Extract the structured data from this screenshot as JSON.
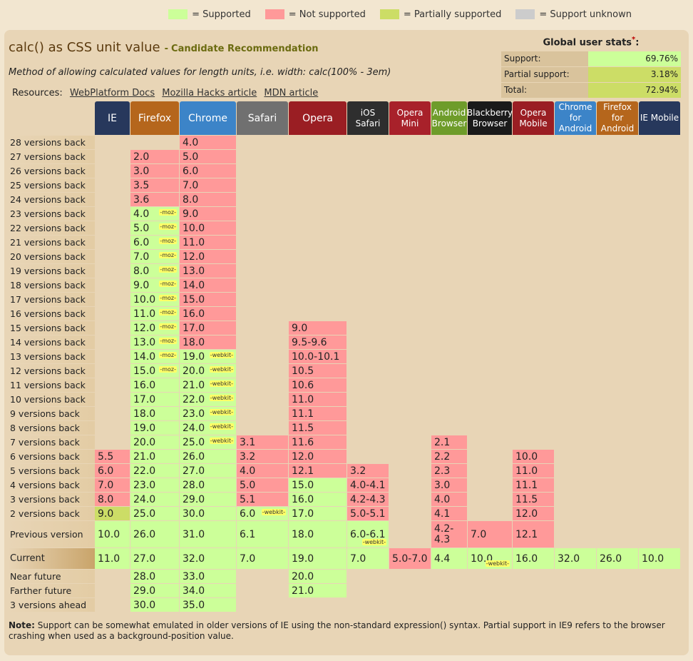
{
  "legend": [
    {
      "label": "= Supported",
      "color": "#ccff99"
    },
    {
      "label": "= Not supported",
      "color": "#ff9999"
    },
    {
      "label": "= Partially supported",
      "color": "#ccdd66"
    },
    {
      "label": "= Support unknown",
      "color": "#cccccc"
    }
  ],
  "feature": {
    "title": "calc() as CSS unit value",
    "status_dash": "-",
    "status": "Candidate Recommendation",
    "description": "Method of allowing calculated values for length units, i.e. width: calc(100% - 3em)",
    "resources_label": "Resources:",
    "resources": [
      "WebPlatform Docs",
      "Mozilla Hacks article",
      "MDN article"
    ]
  },
  "stats": {
    "title": "Global user stats",
    "asterisk": "*",
    "colon": ":",
    "rows": [
      {
        "label": "Support:",
        "value": "69.76%",
        "color": "#ccff99"
      },
      {
        "label": "Partial support:",
        "value": "3.18%",
        "color": "#ccdd66"
      },
      {
        "label": "Total:",
        "value": "72.94%",
        "color": "#ccdd66"
      }
    ]
  },
  "browsers": [
    {
      "name": "IE",
      "color": "#27385c"
    },
    {
      "name": "Firefox",
      "color": "#b5661c"
    },
    {
      "name": "Chrome",
      "color": "#3c84c8"
    },
    {
      "name": "Safari",
      "color": "#707070"
    },
    {
      "name": "Opera",
      "color": "#9a1e23"
    },
    {
      "name": "iOS Safari",
      "color": "#2e2e2e"
    },
    {
      "name": "Opera Mini",
      "color": "#a8212a"
    },
    {
      "name": "Android Browser",
      "color": "#6e9c2a"
    },
    {
      "name": "Blackberry Browser",
      "color": "#1a1a1a"
    },
    {
      "name": "Opera Mobile",
      "color": "#9a1e23"
    },
    {
      "name": "Chrome for Android",
      "color": "#3c84c8"
    },
    {
      "name": "Firefox for Android",
      "color": "#b5661c"
    },
    {
      "name": "IE Mobile",
      "color": "#27385c"
    }
  ],
  "rows": [
    "28 versions back",
    "27 versions back",
    "26 versions back",
    "25 versions back",
    "24 versions back",
    "23 versions back",
    "22 versions back",
    "21 versions back",
    "20 versions back",
    "19 versions back",
    "18 versions back",
    "17 versions back",
    "16 versions back",
    "15 versions back",
    "14 versions back",
    "13 versions back",
    "12 versions back",
    "11 versions back",
    "10 versions back",
    "9 versions back",
    "8 versions back",
    "7 versions back",
    "6 versions back",
    "5 versions back",
    "4 versions back",
    "3 versions back",
    "2 versions back",
    "Previous version",
    "Current",
    "Near future",
    "Farther future",
    "3 versions ahead"
  ],
  "cells": [
    {
      "r": 0,
      "c": 2,
      "v": "4.0",
      "s": "n"
    },
    {
      "r": 1,
      "c": 1,
      "v": "2.0",
      "s": "n"
    },
    {
      "r": 1,
      "c": 2,
      "v": "5.0",
      "s": "n"
    },
    {
      "r": 2,
      "c": 1,
      "v": "3.0",
      "s": "n"
    },
    {
      "r": 2,
      "c": 2,
      "v": "6.0",
      "s": "n"
    },
    {
      "r": 3,
      "c": 1,
      "v": "3.5",
      "s": "n"
    },
    {
      "r": 3,
      "c": 2,
      "v": "7.0",
      "s": "n"
    },
    {
      "r": 4,
      "c": 1,
      "v": "3.6",
      "s": "n"
    },
    {
      "r": 4,
      "c": 2,
      "v": "8.0",
      "s": "n"
    },
    {
      "r": 5,
      "c": 1,
      "v": "4.0",
      "s": "y",
      "px": "-moz-"
    },
    {
      "r": 5,
      "c": 2,
      "v": "9.0",
      "s": "n"
    },
    {
      "r": 6,
      "c": 1,
      "v": "5.0",
      "s": "y",
      "px": "-moz-"
    },
    {
      "r": 6,
      "c": 2,
      "v": "10.0",
      "s": "n"
    },
    {
      "r": 7,
      "c": 1,
      "v": "6.0",
      "s": "y",
      "px": "-moz-"
    },
    {
      "r": 7,
      "c": 2,
      "v": "11.0",
      "s": "n"
    },
    {
      "r": 8,
      "c": 1,
      "v": "7.0",
      "s": "y",
      "px": "-moz-"
    },
    {
      "r": 8,
      "c": 2,
      "v": "12.0",
      "s": "n"
    },
    {
      "r": 9,
      "c": 1,
      "v": "8.0",
      "s": "y",
      "px": "-moz-"
    },
    {
      "r": 9,
      "c": 2,
      "v": "13.0",
      "s": "n"
    },
    {
      "r": 10,
      "c": 1,
      "v": "9.0",
      "s": "y",
      "px": "-moz-"
    },
    {
      "r": 10,
      "c": 2,
      "v": "14.0",
      "s": "n"
    },
    {
      "r": 11,
      "c": 1,
      "v": "10.0",
      "s": "y",
      "px": "-moz-"
    },
    {
      "r": 11,
      "c": 2,
      "v": "15.0",
      "s": "n"
    },
    {
      "r": 12,
      "c": 1,
      "v": "11.0",
      "s": "y",
      "px": "-moz-"
    },
    {
      "r": 12,
      "c": 2,
      "v": "16.0",
      "s": "n"
    },
    {
      "r": 13,
      "c": 1,
      "v": "12.0",
      "s": "y",
      "px": "-moz-"
    },
    {
      "r": 13,
      "c": 2,
      "v": "17.0",
      "s": "n"
    },
    {
      "r": 13,
      "c": 4,
      "v": "9.0",
      "s": "n"
    },
    {
      "r": 14,
      "c": 1,
      "v": "13.0",
      "s": "y",
      "px": "-moz-"
    },
    {
      "r": 14,
      "c": 2,
      "v": "18.0",
      "s": "n"
    },
    {
      "r": 14,
      "c": 4,
      "v": "9.5-9.6",
      "s": "n"
    },
    {
      "r": 15,
      "c": 1,
      "v": "14.0",
      "s": "y",
      "px": "-moz-"
    },
    {
      "r": 15,
      "c": 2,
      "v": "19.0",
      "s": "y",
      "px": "-webkit-"
    },
    {
      "r": 15,
      "c": 4,
      "v": "10.0-10.1",
      "s": "n"
    },
    {
      "r": 16,
      "c": 1,
      "v": "15.0",
      "s": "y",
      "px": "-moz-"
    },
    {
      "r": 16,
      "c": 2,
      "v": "20.0",
      "s": "y",
      "px": "-webkit-"
    },
    {
      "r": 16,
      "c": 4,
      "v": "10.5",
      "s": "n"
    },
    {
      "r": 17,
      "c": 1,
      "v": "16.0",
      "s": "y"
    },
    {
      "r": 17,
      "c": 2,
      "v": "21.0",
      "s": "y",
      "px": "-webkit-"
    },
    {
      "r": 17,
      "c": 4,
      "v": "10.6",
      "s": "n"
    },
    {
      "r": 18,
      "c": 1,
      "v": "17.0",
      "s": "y"
    },
    {
      "r": 18,
      "c": 2,
      "v": "22.0",
      "s": "y",
      "px": "-webkit-"
    },
    {
      "r": 18,
      "c": 4,
      "v": "11.0",
      "s": "n"
    },
    {
      "r": 19,
      "c": 1,
      "v": "18.0",
      "s": "y"
    },
    {
      "r": 19,
      "c": 2,
      "v": "23.0",
      "s": "y",
      "px": "-webkit-"
    },
    {
      "r": 19,
      "c": 4,
      "v": "11.1",
      "s": "n"
    },
    {
      "r": 20,
      "c": 1,
      "v": "19.0",
      "s": "y"
    },
    {
      "r": 20,
      "c": 2,
      "v": "24.0",
      "s": "y",
      "px": "-webkit-"
    },
    {
      "r": 20,
      "c": 4,
      "v": "11.5",
      "s": "n"
    },
    {
      "r": 21,
      "c": 1,
      "v": "20.0",
      "s": "y"
    },
    {
      "r": 21,
      "c": 2,
      "v": "25.0",
      "s": "y",
      "px": "-webkit-"
    },
    {
      "r": 21,
      "c": 3,
      "v": "3.1",
      "s": "n"
    },
    {
      "r": 21,
      "c": 4,
      "v": "11.6",
      "s": "n"
    },
    {
      "r": 21,
      "c": 7,
      "v": "2.1",
      "s": "n"
    },
    {
      "r": 22,
      "c": 0,
      "v": "5.5",
      "s": "n"
    },
    {
      "r": 22,
      "c": 1,
      "v": "21.0",
      "s": "y"
    },
    {
      "r": 22,
      "c": 2,
      "v": "26.0",
      "s": "y"
    },
    {
      "r": 22,
      "c": 3,
      "v": "3.2",
      "s": "n"
    },
    {
      "r": 22,
      "c": 4,
      "v": "12.0",
      "s": "n"
    },
    {
      "r": 22,
      "c": 7,
      "v": "2.2",
      "s": "n"
    },
    {
      "r": 22,
      "c": 9,
      "v": "10.0",
      "s": "n"
    },
    {
      "r": 23,
      "c": 0,
      "v": "6.0",
      "s": "n"
    },
    {
      "r": 23,
      "c": 1,
      "v": "22.0",
      "s": "y"
    },
    {
      "r": 23,
      "c": 2,
      "v": "27.0",
      "s": "y"
    },
    {
      "r": 23,
      "c": 3,
      "v": "4.0",
      "s": "n"
    },
    {
      "r": 23,
      "c": 4,
      "v": "12.1",
      "s": "n"
    },
    {
      "r": 23,
      "c": 5,
      "v": "3.2",
      "s": "n"
    },
    {
      "r": 23,
      "c": 7,
      "v": "2.3",
      "s": "n"
    },
    {
      "r": 23,
      "c": 9,
      "v": "11.0",
      "s": "n"
    },
    {
      "r": 24,
      "c": 0,
      "v": "7.0",
      "s": "n"
    },
    {
      "r": 24,
      "c": 1,
      "v": "23.0",
      "s": "y"
    },
    {
      "r": 24,
      "c": 2,
      "v": "28.0",
      "s": "y"
    },
    {
      "r": 24,
      "c": 3,
      "v": "5.0",
      "s": "n"
    },
    {
      "r": 24,
      "c": 4,
      "v": "15.0",
      "s": "y"
    },
    {
      "r": 24,
      "c": 5,
      "v": "4.0-4.1",
      "s": "n"
    },
    {
      "r": 24,
      "c": 7,
      "v": "3.0",
      "s": "n"
    },
    {
      "r": 24,
      "c": 9,
      "v": "11.1",
      "s": "n"
    },
    {
      "r": 25,
      "c": 0,
      "v": "8.0",
      "s": "n"
    },
    {
      "r": 25,
      "c": 1,
      "v": "24.0",
      "s": "y"
    },
    {
      "r": 25,
      "c": 2,
      "v": "29.0",
      "s": "y"
    },
    {
      "r": 25,
      "c": 3,
      "v": "5.1",
      "s": "n"
    },
    {
      "r": 25,
      "c": 4,
      "v": "16.0",
      "s": "y"
    },
    {
      "r": 25,
      "c": 5,
      "v": "4.2-4.3",
      "s": "n"
    },
    {
      "r": 25,
      "c": 7,
      "v": "4.0",
      "s": "n"
    },
    {
      "r": 25,
      "c": 9,
      "v": "11.5",
      "s": "n"
    },
    {
      "r": 26,
      "c": 0,
      "v": "9.0",
      "s": "p"
    },
    {
      "r": 26,
      "c": 1,
      "v": "25.0",
      "s": "y"
    },
    {
      "r": 26,
      "c": 2,
      "v": "30.0",
      "s": "y"
    },
    {
      "r": 26,
      "c": 3,
      "v": "6.0",
      "s": "y",
      "px": "-webkit-"
    },
    {
      "r": 26,
      "c": 4,
      "v": "17.0",
      "s": "y"
    },
    {
      "r": 26,
      "c": 5,
      "v": "5.0-5.1",
      "s": "n"
    },
    {
      "r": 26,
      "c": 7,
      "v": "4.1",
      "s": "n"
    },
    {
      "r": 26,
      "c": 9,
      "v": "12.0",
      "s": "n"
    },
    {
      "r": 27,
      "c": 0,
      "v": "10.0",
      "s": "y"
    },
    {
      "r": 27,
      "c": 1,
      "v": "26.0",
      "s": "y"
    },
    {
      "r": 27,
      "c": 2,
      "v": "31.0",
      "s": "y"
    },
    {
      "r": 27,
      "c": 3,
      "v": "6.1",
      "s": "y"
    },
    {
      "r": 27,
      "c": 4,
      "v": "18.0",
      "s": "y"
    },
    {
      "r": 27,
      "c": 5,
      "v": "6.0-6.1",
      "s": "y",
      "px": "-webkit-"
    },
    {
      "r": 27,
      "c": 7,
      "v": "4.2-4.3",
      "s": "n"
    },
    {
      "r": 27,
      "c": 8,
      "v": "7.0",
      "s": "n"
    },
    {
      "r": 27,
      "c": 9,
      "v": "12.1",
      "s": "n"
    },
    {
      "r": 28,
      "c": 0,
      "v": "11.0",
      "s": "y"
    },
    {
      "r": 28,
      "c": 1,
      "v": "27.0",
      "s": "y"
    },
    {
      "r": 28,
      "c": 2,
      "v": "32.0",
      "s": "y"
    },
    {
      "r": 28,
      "c": 3,
      "v": "7.0",
      "s": "y"
    },
    {
      "r": 28,
      "c": 4,
      "v": "19.0",
      "s": "y"
    },
    {
      "r": 28,
      "c": 5,
      "v": "7.0",
      "s": "y"
    },
    {
      "r": 28,
      "c": 6,
      "v": "5.0-7.0",
      "s": "n"
    },
    {
      "r": 28,
      "c": 7,
      "v": "4.4",
      "s": "y"
    },
    {
      "r": 28,
      "c": 8,
      "v": "10.0",
      "s": "y",
      "px": "-webkit-"
    },
    {
      "r": 28,
      "c": 9,
      "v": "16.0",
      "s": "y"
    },
    {
      "r": 28,
      "c": 10,
      "v": "32.0",
      "s": "y"
    },
    {
      "r": 28,
      "c": 11,
      "v": "26.0",
      "s": "y"
    },
    {
      "r": 28,
      "c": 12,
      "v": "10.0",
      "s": "y"
    },
    {
      "r": 29,
      "c": 1,
      "v": "28.0",
      "s": "y"
    },
    {
      "r": 29,
      "c": 2,
      "v": "33.0",
      "s": "y"
    },
    {
      "r": 29,
      "c": 4,
      "v": "20.0",
      "s": "y"
    },
    {
      "r": 30,
      "c": 1,
      "v": "29.0",
      "s": "y"
    },
    {
      "r": 30,
      "c": 2,
      "v": "34.0",
      "s": "y"
    },
    {
      "r": 30,
      "c": 4,
      "v": "21.0",
      "s": "y"
    },
    {
      "r": 31,
      "c": 1,
      "v": "30.0",
      "s": "y"
    },
    {
      "r": 31,
      "c": 2,
      "v": "35.0",
      "s": "y"
    }
  ],
  "note": {
    "label": "Note:",
    "text": "Support can be somewhat emulated in older versions of IE using the non-standard expression() syntax. Partial support in IE9 refers to the browser crashing when used as a background-position value."
  }
}
